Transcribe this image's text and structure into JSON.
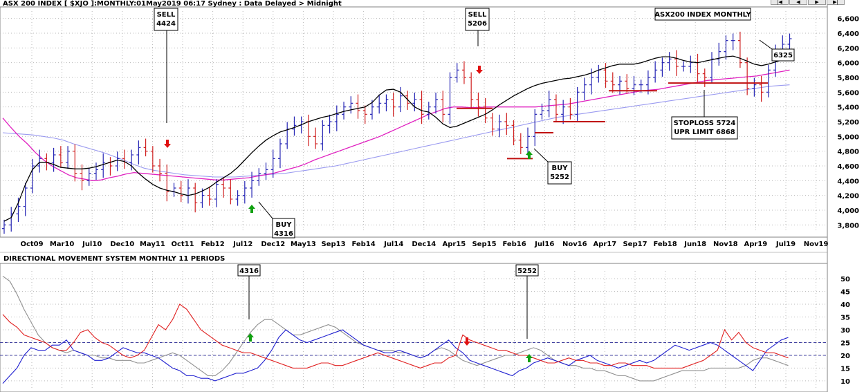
{
  "header": {
    "title": "ASX 200 INDEX [ $XJO ]:MONTHLY:01May2019 06:17 Sydney : Data Delayed > Midnight",
    "chart_label": "ASX200 INDEX MONTHLY",
    "indicator_title": "DIRECTIONAL MOVEMENT SYSTEM MONTHLY 11 PERIODS"
  },
  "nav": {
    "first": "|◀",
    "prev": "◀",
    "next": "▶",
    "last": "▶|"
  },
  "colors": {
    "up_bar": "#2424b4",
    "down_bar": "#d02020",
    "ma_short": "#000000",
    "ma_mid": "#e020c0",
    "ma_long": "#9a9af0",
    "adx": "#909090",
    "plus_di": "#2020d0",
    "minus_di": "#e02020",
    "signal_buy": "#10a010",
    "signal_sell": "#e01010",
    "grid": "#b8b8b8"
  },
  "annotations": {
    "price": [
      {
        "label": "SELL",
        "value": "4424"
      },
      {
        "label": "SELL",
        "value": "5206"
      },
      {
        "label": "BUY",
        "value": "4316"
      },
      {
        "label": "BUY",
        "value": "5252"
      },
      {
        "label": "STOPLOSS 5724",
        "value": "UPR LIMIT 6868"
      },
      {
        "label": "",
        "value": "6325"
      }
    ],
    "indicator": [
      "4316",
      "5252"
    ]
  },
  "chart_data": [
    {
      "type": "ohlc",
      "title": "ASX200 INDEX MONTHLY",
      "x_ticks": [
        "Oct09",
        "Mar10",
        "Jul10",
        "Dec10",
        "May11",
        "Oct11",
        "Feb12",
        "Jul12",
        "Dec12",
        "May13",
        "Sep13",
        "Feb14",
        "Jul14",
        "Dec14",
        "Apr15",
        "Sep15",
        "Feb16",
        "Jul16",
        "Nov16",
        "Apr17",
        "Sep17",
        "Feb18",
        "Jun18",
        "Nov18",
        "Apr19",
        "Jul19",
        "Nov19"
      ],
      "y_ticks": [
        "3,800",
        "4,000",
        "4,200",
        "4,400",
        "4,600",
        "4,800",
        "5,000",
        "5,200",
        "5,400",
        "5,600",
        "5,800",
        "6,000",
        "6,200",
        "6,400",
        "6,600"
      ],
      "ylim": [
        3700,
        6700
      ],
      "grid": true,
      "series": [
        {
          "name": "Price",
          "values": [
            3800,
            3950,
            4050,
            4300,
            4600,
            4700,
            4650,
            4750,
            4650,
            4800,
            4500,
            4400,
            4500,
            4550,
            4650,
            4600,
            4700,
            4650,
            4750,
            4850,
            4800,
            4600,
            4500,
            4250,
            4300,
            4200,
            4300,
            4100,
            4200,
            4150,
            4350,
            4300,
            4150,
            4200,
            4300,
            4400,
            4500,
            4550,
            4700,
            4900,
            5100,
            5150,
            5200,
            5000,
            4900,
            5150,
            5200,
            5300,
            5400,
            5450,
            5350,
            5300,
            5400,
            5450,
            5500,
            5400,
            5550,
            5450,
            5500,
            5300,
            5400,
            5500,
            5300,
            5800,
            5900,
            5800,
            5500,
            5400,
            5250,
            5100,
            5200,
            5150,
            4950,
            4850,
            5000,
            5300,
            5350,
            5500,
            5300,
            5400,
            5300,
            5600,
            5700,
            5800,
            5900,
            5750,
            5700,
            5750,
            5650,
            5700,
            5700,
            5800,
            5900,
            6000,
            6050,
            5950,
            5950,
            6000,
            5850,
            5800,
            6050,
            6150,
            6300,
            6300,
            6000,
            5650,
            5700,
            5600,
            5900,
            6150,
            6250,
            6325
          ]
        },
        {
          "name": "MA short",
          "values": [
            3850,
            3900,
            4100,
            4350,
            4550,
            4650,
            4650,
            4620,
            4580,
            4570,
            4560,
            4560,
            4570,
            4590,
            4620,
            4650,
            4680,
            4660,
            4600,
            4500,
            4420,
            4350,
            4300,
            4270,
            4250,
            4220,
            4200,
            4220,
            4260,
            4310,
            4380,
            4440,
            4500,
            4580,
            4680,
            4780,
            4870,
            4950,
            5010,
            5060,
            5090,
            5120,
            5160,
            5200,
            5230,
            5260,
            5280,
            5310,
            5340,
            5360,
            5380,
            5400,
            5460,
            5560,
            5630,
            5640,
            5600,
            5500,
            5400,
            5350,
            5330,
            5260,
            5170,
            5120,
            5140,
            5180,
            5220,
            5260,
            5300,
            5360,
            5430,
            5490,
            5550,
            5600,
            5650,
            5690,
            5720,
            5740,
            5760,
            5780,
            5790,
            5810,
            5830,
            5860,
            5900,
            5930,
            5960,
            5980,
            5980,
            5980,
            6000,
            6030,
            6060,
            6080,
            6080,
            6060,
            6030,
            6010,
            6000,
            6020,
            6040,
            6060,
            6080,
            6090,
            6060,
            6020,
            5980,
            5960,
            5980,
            6010,
            6040,
            6060
          ]
        },
        {
          "name": "MA mid",
          "values": [
            5250,
            5120,
            5000,
            4900,
            4780,
            4680,
            4600,
            4540,
            4480,
            4440,
            4420,
            4400,
            4410,
            4440,
            4460,
            4490,
            4510,
            4500,
            4490,
            4480,
            4470,
            4460,
            4450,
            4440,
            4430,
            4420,
            4410,
            4410,
            4420,
            4430,
            4440,
            4460,
            4480,
            4500,
            4530,
            4560,
            4590,
            4630,
            4680,
            4720,
            4760,
            4800,
            4840,
            4880,
            4920,
            4960,
            5000,
            5050,
            5100,
            5150,
            5200,
            5250,
            5300,
            5340,
            5380,
            5400,
            5400,
            5390,
            5390,
            5400,
            5400,
            5400,
            5400,
            5400,
            5400,
            5400,
            5410,
            5420,
            5430,
            5440,
            5460,
            5480,
            5500,
            5520,
            5540,
            5560,
            5580,
            5600,
            5620,
            5630,
            5640,
            5660,
            5680,
            5700,
            5720,
            5740,
            5760,
            5770,
            5780,
            5790,
            5800,
            5810,
            5820,
            5840,
            5860,
            5880,
            5900
          ]
        },
        {
          "name": "MA long",
          "values": [
            5050,
            5040,
            5030,
            5020,
            5000,
            4980,
            4950,
            4900,
            4860,
            4820,
            4780,
            4730,
            4680,
            4620,
            4570,
            4540,
            4520,
            4500,
            4480,
            4470,
            4460,
            4450,
            4450,
            4450,
            4460,
            4470,
            4480,
            4490,
            4500,
            4520,
            4540,
            4560,
            4580,
            4600,
            4630,
            4660,
            4690,
            4720,
            4750,
            4780,
            4810,
            4840,
            4870,
            4900,
            4930,
            4960,
            4990,
            5020,
            5050,
            5080,
            5110,
            5140,
            5170,
            5200,
            5230,
            5260,
            5280,
            5300,
            5320,
            5340,
            5360,
            5380,
            5400,
            5420,
            5440,
            5460,
            5480,
            5500,
            5520,
            5540,
            5560,
            5580,
            5600,
            5620,
            5640,
            5660,
            5680,
            5690,
            5700
          ]
        }
      ],
      "levels": [
        {
          "name": "stoploss",
          "value": 5724
        },
        {
          "name": "upper limit",
          "value": 6868
        },
        {
          "name": "current",
          "value": 6325
        }
      ]
    },
    {
      "type": "line",
      "title": "DIRECTIONAL MOVEMENT SYSTEM MONTHLY 11 PERIODS",
      "y_ticks": [
        "10",
        "15",
        "20",
        "25",
        "30",
        "35",
        "40",
        "45",
        "50"
      ],
      "ylim": [
        7,
        53
      ],
      "reference_lines": [
        20,
        25
      ],
      "series": [
        {
          "name": "ADX",
          "values": [
            51,
            49,
            44,
            38,
            33,
            28,
            25,
            23,
            22,
            21,
            22,
            21,
            20,
            20,
            19,
            19,
            18,
            18,
            18,
            17,
            17,
            18,
            19,
            20,
            21,
            20,
            18,
            16,
            14,
            12,
            12,
            14,
            17,
            21,
            25,
            29,
            32,
            34,
            34,
            32,
            30,
            28,
            28,
            29,
            30,
            31,
            32,
            31,
            29,
            27,
            25,
            24,
            23,
            22,
            22,
            22,
            21,
            21,
            20,
            19,
            20,
            22,
            23,
            22,
            20,
            18,
            17,
            16,
            17,
            18,
            19,
            20,
            20,
            21,
            22,
            23,
            22,
            20,
            18,
            17,
            16,
            16,
            15,
            15,
            14,
            14,
            13,
            12,
            12,
            11,
            10,
            10,
            10,
            11,
            12,
            13,
            14,
            14,
            14,
            14,
            15,
            15,
            15,
            15,
            15,
            16,
            18,
            19,
            19,
            18,
            17,
            16
          ]
        },
        {
          "name": "+DI",
          "values": [
            9,
            12,
            15,
            20,
            23,
            22,
            22,
            24,
            24,
            26,
            22,
            21,
            20,
            18,
            18,
            19,
            21,
            23,
            22,
            21,
            21,
            20,
            19,
            17,
            15,
            14,
            12,
            12,
            11,
            11,
            10,
            11,
            12,
            13,
            13,
            14,
            15,
            18,
            22,
            27,
            30,
            28,
            26,
            25,
            26,
            27,
            28,
            29,
            30,
            28,
            26,
            24,
            23,
            22,
            21,
            21,
            22,
            21,
            20,
            19,
            20,
            22,
            24,
            26,
            23,
            21,
            18,
            17,
            16,
            15,
            14,
            13,
            12,
            14,
            15,
            17,
            18,
            19,
            18,
            17,
            16,
            18,
            19,
            20,
            18,
            17,
            16,
            15,
            16,
            17,
            18,
            17,
            18,
            20,
            22,
            24,
            23,
            22,
            23,
            24,
            25,
            24,
            22,
            20,
            18,
            16,
            14,
            18,
            22,
            24,
            26,
            27
          ]
        },
        {
          "name": "-DI",
          "values": [
            36,
            33,
            31,
            28,
            27,
            26,
            25,
            23,
            22,
            22,
            25,
            29,
            30,
            27,
            25,
            24,
            22,
            20,
            19,
            20,
            22,
            27,
            32,
            30,
            34,
            40,
            38,
            34,
            30,
            28,
            26,
            24,
            23,
            22,
            21,
            21,
            20,
            19,
            18,
            17,
            16,
            15,
            15,
            15,
            16,
            17,
            17,
            16,
            16,
            17,
            18,
            19,
            20,
            21,
            20,
            19,
            18,
            17,
            16,
            15,
            16,
            17,
            17,
            19,
            20,
            28,
            26,
            25,
            24,
            23,
            22,
            22,
            21,
            20,
            20,
            19,
            18,
            17,
            17,
            18,
            19,
            18,
            18,
            17,
            17,
            16,
            16,
            17,
            17,
            16,
            16,
            16,
            15,
            15,
            15,
            15,
            15,
            16,
            17,
            18,
            20,
            22,
            30,
            26,
            29,
            25,
            23,
            22,
            21,
            21,
            20,
            19
          ]
        }
      ]
    }
  ]
}
